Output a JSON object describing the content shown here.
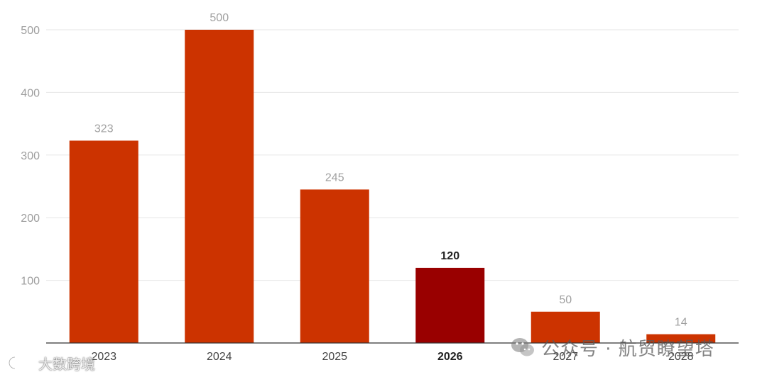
{
  "chart_data": {
    "type": "bar",
    "categories": [
      "2023",
      "2024",
      "2025",
      "2026",
      "2027",
      "2028"
    ],
    "values": [
      323,
      500,
      245,
      120,
      50,
      14
    ],
    "highlight_index": 3,
    "ylim": [
      0,
      500
    ],
    "yticks": [
      100,
      200,
      300,
      400,
      500
    ],
    "grid": true,
    "title": "",
    "xlabel": "",
    "ylabel": "",
    "colors": {
      "bar": "#cc3300",
      "highlight": "#990000"
    }
  },
  "watermarks": {
    "right": "公众号 · 航贸瞭望塔",
    "left": "大数跨境",
    "right_icon": "wechat-icon",
    "left_icon": "logo-mark-icon"
  }
}
